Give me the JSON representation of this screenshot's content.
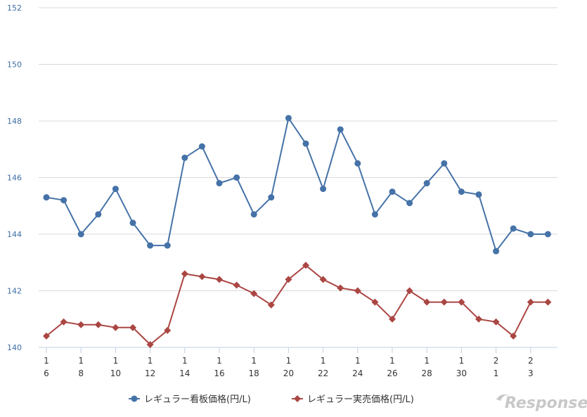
{
  "chart_data": {
    "type": "line",
    "categories": [
      [
        "1",
        "6"
      ],
      [
        "",
        ""
      ],
      [
        "1",
        "8"
      ],
      [
        "",
        ""
      ],
      [
        "1",
        "10"
      ],
      [
        "",
        ""
      ],
      [
        "1",
        "12"
      ],
      [
        "",
        ""
      ],
      [
        "1",
        "14"
      ],
      [
        "",
        ""
      ],
      [
        "1",
        "16"
      ],
      [
        "",
        ""
      ],
      [
        "1",
        "18"
      ],
      [
        "",
        ""
      ],
      [
        "1",
        "20"
      ],
      [
        "",
        ""
      ],
      [
        "1",
        "22"
      ],
      [
        "",
        ""
      ],
      [
        "1",
        "24"
      ],
      [
        "",
        ""
      ],
      [
        "1",
        "26"
      ],
      [
        "",
        ""
      ],
      [
        "1",
        "28"
      ],
      [
        "",
        ""
      ],
      [
        "1",
        "30"
      ],
      [
        "",
        ""
      ],
      [
        "2",
        "1"
      ],
      [
        "",
        ""
      ],
      [
        "2",
        "3"
      ],
      [
        "",
        ""
      ]
    ],
    "series": [
      {
        "name": "レギュラー看板価格(円/L)",
        "color": "#4572a7",
        "marker": "circle",
        "values": [
          145.3,
          145.2,
          144.0,
          144.7,
          145.6,
          144.4,
          143.6,
          143.6,
          146.7,
          147.1,
          145.8,
          146.0,
          144.7,
          145.3,
          148.1,
          147.2,
          145.6,
          147.7,
          146.5,
          144.7,
          145.5,
          145.1,
          145.8,
          146.5,
          145.5,
          145.4,
          143.4,
          144.2,
          144.0,
          144.0
        ]
      },
      {
        "name": "レギュラー実売価格(円/L)",
        "color": "#aa4643",
        "marker": "diamond",
        "values": [
          140.4,
          140.9,
          140.8,
          140.8,
          140.7,
          140.7,
          140.1,
          140.6,
          142.6,
          142.5,
          142.4,
          142.2,
          141.9,
          141.5,
          142.4,
          142.9,
          142.4,
          142.1,
          142.0,
          141.6,
          141.0,
          142.0,
          141.6,
          141.6,
          141.6,
          141.0,
          140.9,
          140.4,
          141.6,
          141.6
        ]
      }
    ],
    "yticks": [
      "140",
      "142",
      "144",
      "146",
      "148",
      "150",
      "152"
    ],
    "ylim": [
      140,
      152
    ],
    "grid": true,
    "legend_position": "bottom"
  },
  "watermark": {
    "text": "Response."
  }
}
